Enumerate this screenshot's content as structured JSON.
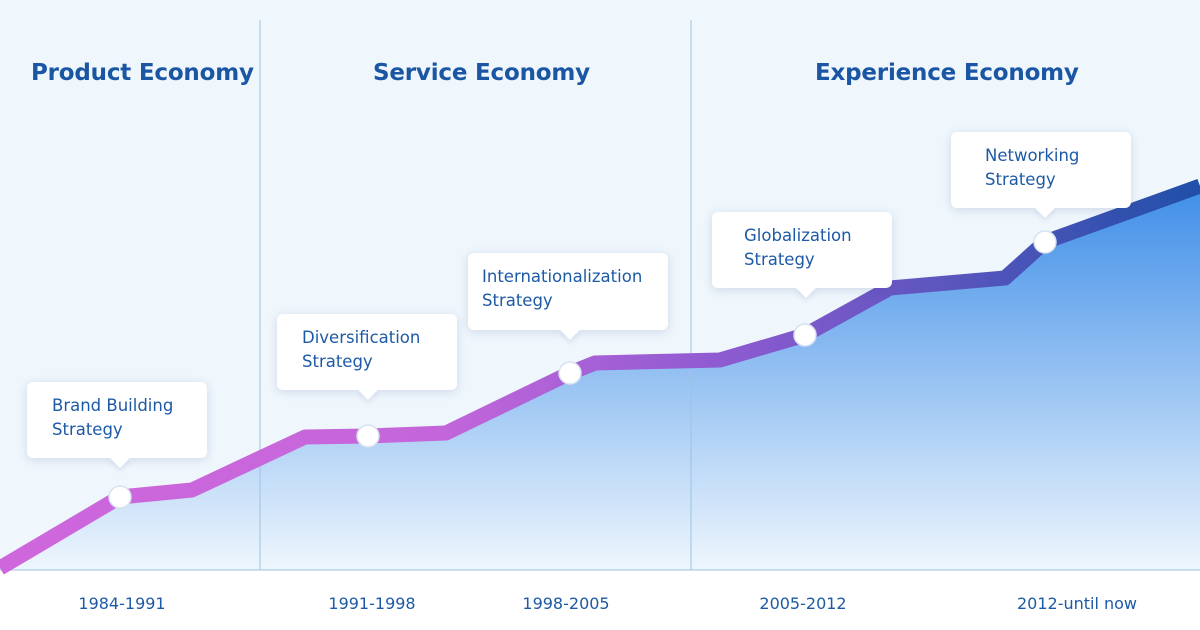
{
  "eras": [
    {
      "title": "Product Economy"
    },
    {
      "title": "Service Economy"
    },
    {
      "title": "Experience Economy"
    }
  ],
  "milestones": [
    {
      "line1": "Brand Building",
      "line2": "Strategy",
      "period": "1984-1991"
    },
    {
      "line1": "Diversification",
      "line2": "Strategy",
      "period": "1991-1998"
    },
    {
      "line1": "Internationalization",
      "line2": "Strategy",
      "period": "1998-2005"
    },
    {
      "line1": "Globalization",
      "line2": "Strategy",
      "period": "2005-2012"
    },
    {
      "line1": "Networking",
      "line2": "Strategy",
      "period": "2012-until now"
    }
  ],
  "colors": {
    "title": "#1a56a3",
    "text": "#1d5aa6",
    "panel_bg": "#eff6fc",
    "divider": "#9cc3e2",
    "area_top": "#3f8ee8",
    "area_bottom": "#eef6fd",
    "line_start": "#cf66dc",
    "line_mid": "#8a5ad0",
    "line_end": "#2050a8"
  }
}
